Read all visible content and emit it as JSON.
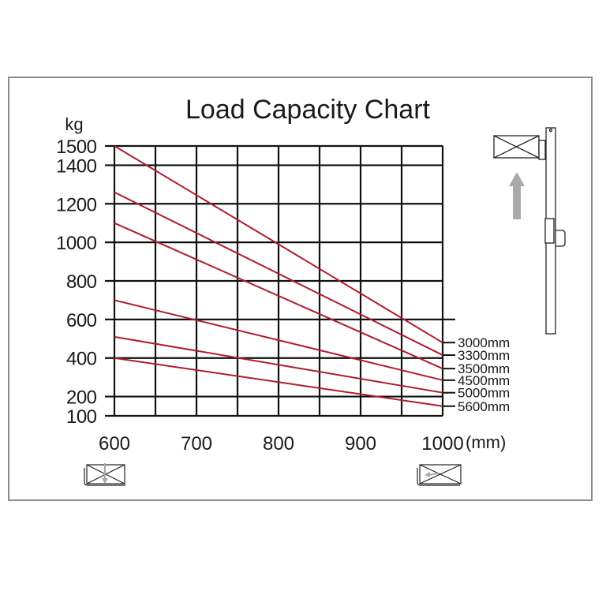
{
  "chart_data": {
    "type": "line",
    "title": "Load Capacity Chart",
    "ylabel": "kg",
    "xlabel": "(mm)",
    "xlim": [
      600,
      1000
    ],
    "ylim": [
      100,
      1500
    ],
    "x_ticks": [
      600,
      700,
      800,
      900,
      1000
    ],
    "y_ticks": [
      1500,
      1400,
      1200,
      1000,
      800,
      600,
      400,
      200,
      100
    ],
    "grid": true,
    "x": [
      600,
      1000
    ],
    "series": [
      {
        "name": "3000mm",
        "values": [
          1500,
          480
        ]
      },
      {
        "name": "3300mm",
        "values": [
          1260,
          415
        ]
      },
      {
        "name": "3500mm",
        "values": [
          1100,
          345
        ]
      },
      {
        "name": "4500mm",
        "values": [
          700,
          285
        ]
      },
      {
        "name": "5000mm",
        "values": [
          510,
          220
        ]
      },
      {
        "name": "5600mm",
        "values": [
          400,
          150
        ]
      }
    ],
    "line_color": "#b01c2e"
  }
}
